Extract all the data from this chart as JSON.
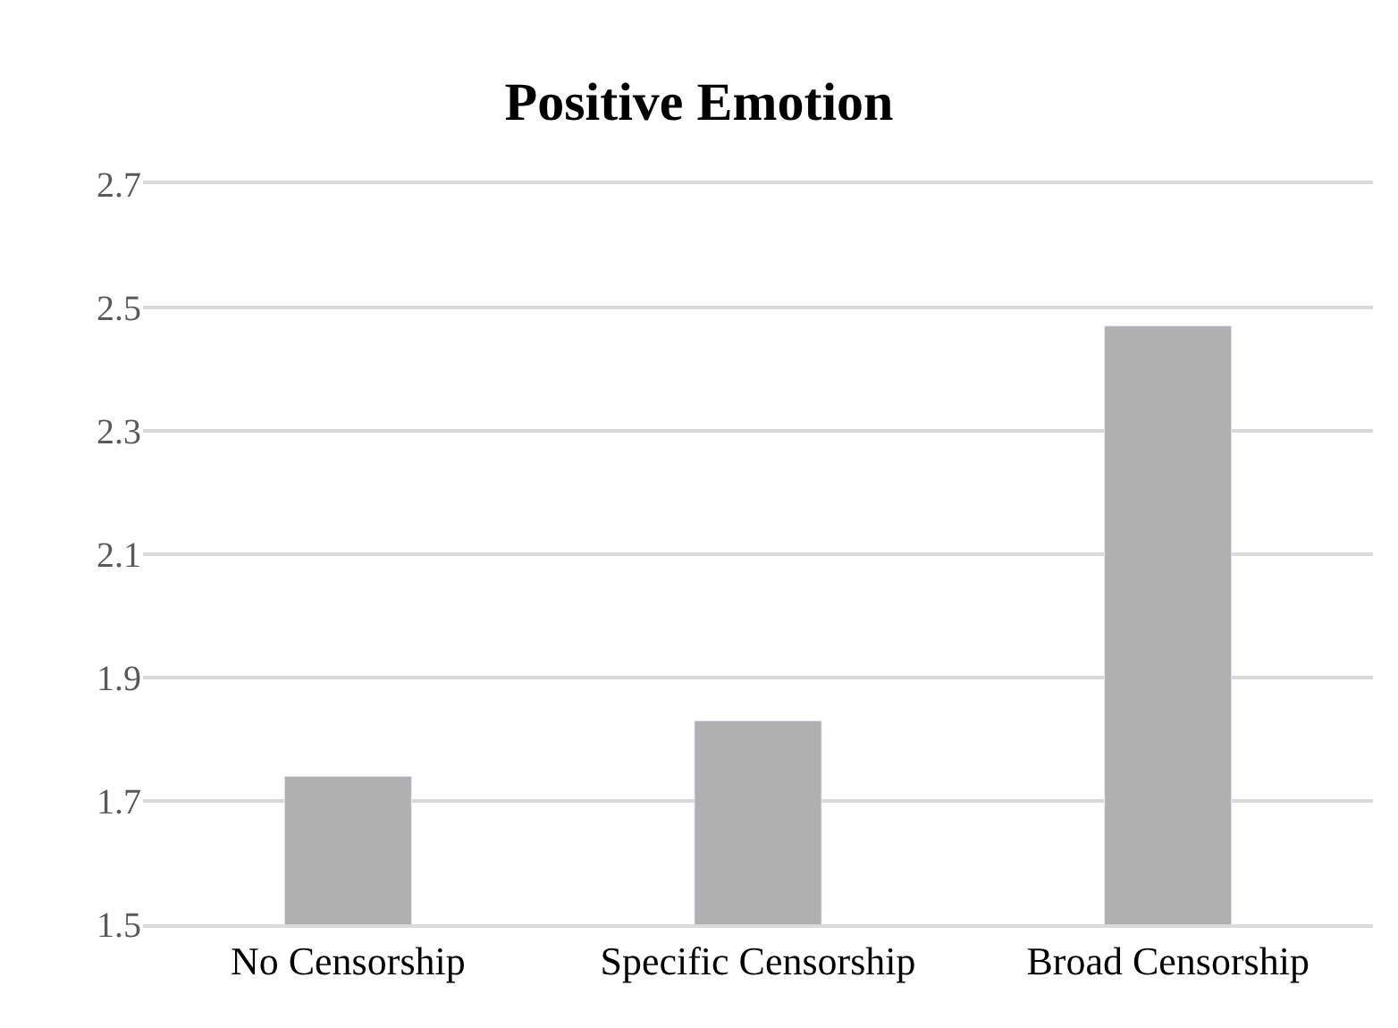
{
  "chart_data": {
    "type": "bar",
    "title": "Positive Emotion",
    "categories": [
      "No Censorship",
      "Specific Censorship",
      "Broad Censorship"
    ],
    "values": [
      1.74,
      1.83,
      2.47
    ],
    "color": "#b0b0b0",
    "ylim": [
      1.5,
      2.7
    ],
    "yticks": [
      1.5,
      1.7,
      1.9,
      2.1,
      2.3,
      2.5,
      2.7
    ],
    "grid": "y",
    "legend": false
  }
}
